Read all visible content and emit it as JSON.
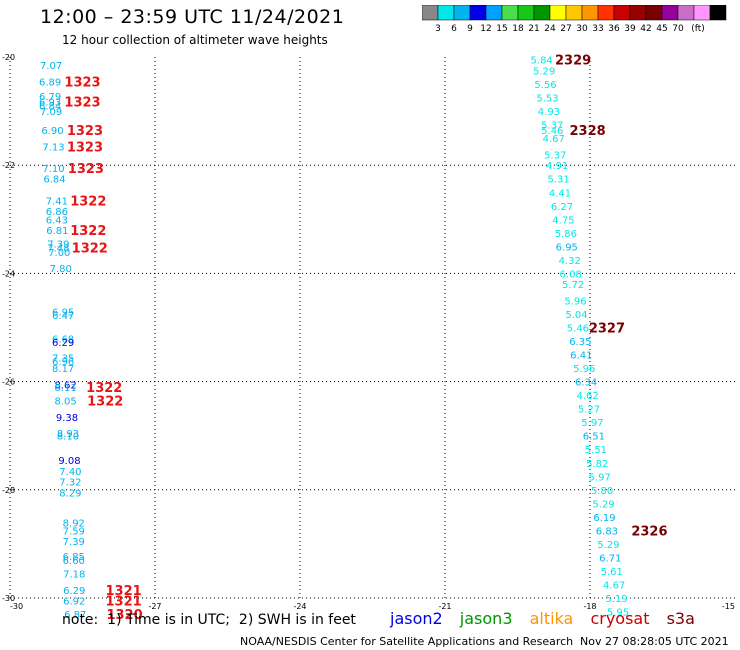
{
  "header": {
    "title": "12:00 – 23:59 UTC 11/24/2021",
    "subtitle": "12 hour collection of altimeter wave heights"
  },
  "colorbar": {
    "colors": [
      "#888888",
      "#00e8e8",
      "#00b4f0",
      "#0000e6",
      "#00a0ff",
      "#4ade4a",
      "#18c818",
      "#009600",
      "#ffff00",
      "#ffc800",
      "#ff9600",
      "#ff3200",
      "#c80000",
      "#960000",
      "#780000",
      "#96009b",
      "#c86ec8",
      "#ff96ff",
      "#000000"
    ],
    "labels": [
      "3",
      "6",
      "9",
      "12",
      "15",
      "18",
      "21",
      "24",
      "27",
      "30",
      "33",
      "36",
      "39",
      "42",
      "45",
      "70",
      "(ft)"
    ]
  },
  "footer": {
    "note": "note:  1) Time is in UTC;  2) SWH is in feet",
    "credit": "NOAA/NESDIS Center for Satellite Applications and Research",
    "timestamp": "Nov 27 08:28:05 UTC 2021"
  },
  "legend": [
    {
      "name": "jason2",
      "color": "#0000e6"
    },
    {
      "name": "jason3",
      "color": "#009600"
    },
    {
      "name": "altika",
      "color": "#ff9600"
    },
    {
      "name": "cryosat",
      "color": "#c80000"
    },
    {
      "name": "s3a",
      "color": "#780000"
    }
  ],
  "chart_data": {
    "type": "scatter",
    "title": "12 hour collection of altimeter wave heights",
    "xlim": [
      -30,
      -15
    ],
    "ylim": [
      -30,
      -20
    ],
    "x_ticks": [
      "-30",
      "-27",
      "-24",
      "-21",
      "-18",
      "-15"
    ],
    "y_ticks": [
      "-20",
      "-22",
      "-24",
      "-26",
      "-28",
      "-30"
    ],
    "grid": true,
    "height_points": [
      {
        "x": -29.15,
        "y": -20.15,
        "value": "7.07",
        "color": "#00b4f0"
      },
      {
        "x": -29.17,
        "y": -20.45,
        "value": "6.89",
        "color": "#00b4f0"
      },
      {
        "x": -29.17,
        "y": -20.72,
        "value": "6.79",
        "color": "#00b4f0"
      },
      {
        "x": -29.17,
        "y": -20.82,
        "value": "6.93",
        "color": "#00b4f0"
      },
      {
        "x": -29.17,
        "y": -20.9,
        "value": "6.84",
        "color": "#00b4f0"
      },
      {
        "x": -29.15,
        "y": -21.0,
        "value": "7.09",
        "color": "#00b4f0"
      },
      {
        "x": -29.12,
        "y": -21.35,
        "value": "6.90",
        "color": "#00b4f0"
      },
      {
        "x": -29.1,
        "y": -21.65,
        "value": "7.13",
        "color": "#00b4f0"
      },
      {
        "x": -29.1,
        "y": -22.05,
        "value": "7.10",
        "color": "#00b4f0"
      },
      {
        "x": -29.08,
        "y": -22.25,
        "value": "6.84",
        "color": "#00b4f0"
      },
      {
        "x": -29.03,
        "y": -22.65,
        "value": "7.41",
        "color": "#00b4f0"
      },
      {
        "x": -29.03,
        "y": -22.85,
        "value": "6.86",
        "color": "#00b4f0"
      },
      {
        "x": -29.03,
        "y": -23.0,
        "value": "6.43",
        "color": "#00b4f0"
      },
      {
        "x": -29.02,
        "y": -23.2,
        "value": "6.81",
        "color": "#00b4f0"
      },
      {
        "x": -29.0,
        "y": -23.45,
        "value": "7.39",
        "color": "#00b4f0"
      },
      {
        "x": -29.0,
        "y": -23.52,
        "value": "7.48",
        "color": "#00b4f0"
      },
      {
        "x": -28.98,
        "y": -23.6,
        "value": "7.00",
        "color": "#00b4f0"
      },
      {
        "x": -28.95,
        "y": -23.9,
        "value": "7.80",
        "color": "#00b4f0"
      },
      {
        "x": -28.9,
        "y": -24.7,
        "value": "6.95",
        "color": "#00b4f0"
      },
      {
        "x": -28.9,
        "y": -24.77,
        "value": "6.47",
        "color": "#00b4f0"
      },
      {
        "x": -28.9,
        "y": -25.2,
        "value": "6.68",
        "color": "#00b4f0"
      },
      {
        "x": -28.9,
        "y": -25.27,
        "value": "6.29",
        "color": "#0000e6"
      },
      {
        "x": -28.9,
        "y": -25.55,
        "value": "7.35",
        "color": "#00b4f0"
      },
      {
        "x": -28.9,
        "y": -25.62,
        "value": "6.96",
        "color": "#00b4f0"
      },
      {
        "x": -28.9,
        "y": -25.75,
        "value": "8.17",
        "color": "#00b4f0"
      },
      {
        "x": -28.85,
        "y": -26.05,
        "value": "8.62",
        "color": "#0000e6"
      },
      {
        "x": -28.85,
        "y": -26.1,
        "value": "8.11",
        "color": "#00b4f0"
      },
      {
        "x": -28.85,
        "y": -26.35,
        "value": "8.05",
        "color": "#00b4f0"
      },
      {
        "x": -28.82,
        "y": -26.65,
        "value": "9.38",
        "color": "#0000e6"
      },
      {
        "x": -28.8,
        "y": -26.95,
        "value": "8.93",
        "color": "#00b4f0"
      },
      {
        "x": -28.8,
        "y": -27.0,
        "value": "8.10",
        "color": "#00b4f0"
      },
      {
        "x": -28.77,
        "y": -27.45,
        "value": "9.08",
        "color": "#0000e6"
      },
      {
        "x": -28.75,
        "y": -27.65,
        "value": "7.40",
        "color": "#00b4f0"
      },
      {
        "x": -28.75,
        "y": -27.85,
        "value": "7.32",
        "color": "#00b4f0"
      },
      {
        "x": -28.75,
        "y": -28.05,
        "value": "8.29",
        "color": "#00b4f0"
      },
      {
        "x": -28.68,
        "y": -28.6,
        "value": "8.92",
        "color": "#00b4f0"
      },
      {
        "x": -28.68,
        "y": -28.75,
        "value": "7.59",
        "color": "#00b4f0"
      },
      {
        "x": -28.68,
        "y": -28.95,
        "value": "7.39",
        "color": "#00b4f0"
      },
      {
        "x": -28.68,
        "y": -29.22,
        "value": "6.85",
        "color": "#00b4f0"
      },
      {
        "x": -28.68,
        "y": -29.3,
        "value": "6.60",
        "color": "#00b4f0"
      },
      {
        "x": -28.67,
        "y": -29.55,
        "value": "7.18",
        "color": "#00b4f0"
      },
      {
        "x": -28.67,
        "y": -29.85,
        "value": "6.29",
        "color": "#00b4f0"
      },
      {
        "x": -28.67,
        "y": -30.05,
        "value": "6.92",
        "color": "#00b4f0"
      },
      {
        "x": -28.65,
        "y": -30.3,
        "value": "6.87",
        "color": "#00b4f0"
      },
      {
        "x": -19.0,
        "y": -20.05,
        "value": "5.84",
        "color": "#00e8e8"
      },
      {
        "x": -18.95,
        "y": -20.25,
        "value": "5.29",
        "color": "#00e8e8"
      },
      {
        "x": -18.92,
        "y": -20.5,
        "value": "5.56",
        "color": "#00e8e8"
      },
      {
        "x": -18.88,
        "y": -20.75,
        "value": "5.53",
        "color": "#00e8e8"
      },
      {
        "x": -18.85,
        "y": -21.0,
        "value": "4.93",
        "color": "#00e8e8"
      },
      {
        "x": -18.78,
        "y": -21.25,
        "value": "5.37",
        "color": "#00e8e8"
      },
      {
        "x": -18.78,
        "y": -21.35,
        "value": "5.46",
        "color": "#00e8e8"
      },
      {
        "x": -18.75,
        "y": -21.5,
        "value": "4.67",
        "color": "#00e8e8"
      },
      {
        "x": -18.72,
        "y": -21.8,
        "value": "5.37",
        "color": "#00e8e8"
      },
      {
        "x": -18.68,
        "y": -22.0,
        "value": "4.91",
        "color": "#00e8e8"
      },
      {
        "x": -18.65,
        "y": -22.25,
        "value": "5.31",
        "color": "#00e8e8"
      },
      {
        "x": -18.62,
        "y": -22.5,
        "value": "4.41",
        "color": "#00e8e8"
      },
      {
        "x": -18.58,
        "y": -22.75,
        "value": "6.27",
        "color": "#00e8e8"
      },
      {
        "x": -18.55,
        "y": -23.0,
        "value": "4.75",
        "color": "#00e8e8"
      },
      {
        "x": -18.5,
        "y": -23.25,
        "value": "5.86",
        "color": "#00e8e8"
      },
      {
        "x": -18.48,
        "y": -23.5,
        "value": "6.95",
        "color": "#00b4f0"
      },
      {
        "x": -18.42,
        "y": -23.75,
        "value": "4.32",
        "color": "#00e8e8"
      },
      {
        "x": -18.4,
        "y": -24.0,
        "value": "6.08",
        "color": "#00e8e8"
      },
      {
        "x": -18.35,
        "y": -24.2,
        "value": "5.72",
        "color": "#00e8e8"
      },
      {
        "x": -18.3,
        "y": -24.5,
        "value": "5.96",
        "color": "#00e8e8"
      },
      {
        "x": -18.28,
        "y": -24.75,
        "value": "5.04",
        "color": "#00e8e8"
      },
      {
        "x": -18.25,
        "y": -25.0,
        "value": "5.46",
        "color": "#00e8e8"
      },
      {
        "x": -18.2,
        "y": -25.25,
        "value": "6.35",
        "color": "#00b4f0"
      },
      {
        "x": -18.18,
        "y": -25.5,
        "value": "6.41",
        "color": "#00b4f0"
      },
      {
        "x": -18.12,
        "y": -25.75,
        "value": "5.96",
        "color": "#00e8e8"
      },
      {
        "x": -18.08,
        "y": -26.0,
        "value": "6.34",
        "color": "#00b4f0"
      },
      {
        "x": -18.05,
        "y": -26.25,
        "value": "4.62",
        "color": "#00e8e8"
      },
      {
        "x": -18.02,
        "y": -26.5,
        "value": "5.27",
        "color": "#00e8e8"
      },
      {
        "x": -17.95,
        "y": -26.75,
        "value": "5.97",
        "color": "#00e8e8"
      },
      {
        "x": -17.92,
        "y": -27.0,
        "value": "6.51",
        "color": "#00b4f0"
      },
      {
        "x": -17.88,
        "y": -27.25,
        "value": "5.51",
        "color": "#00e8e8"
      },
      {
        "x": -17.85,
        "y": -27.5,
        "value": "5.82",
        "color": "#00e8e8"
      },
      {
        "x": -17.8,
        "y": -27.75,
        "value": "5.97",
        "color": "#00e8e8"
      },
      {
        "x": -17.75,
        "y": -28.0,
        "value": "5.80",
        "color": "#00e8e8"
      },
      {
        "x": -17.72,
        "y": -28.25,
        "value": "5.29",
        "color": "#00e8e8"
      },
      {
        "x": -17.7,
        "y": -28.5,
        "value": "6.19",
        "color": "#00b4f0"
      },
      {
        "x": -17.65,
        "y": -28.75,
        "value": "6.83",
        "color": "#00b4f0"
      },
      {
        "x": -17.62,
        "y": -29.0,
        "value": "5.29",
        "color": "#00e8e8"
      },
      {
        "x": -17.58,
        "y": -29.25,
        "value": "6.71",
        "color": "#00b4f0"
      },
      {
        "x": -17.55,
        "y": -29.5,
        "value": "5.61",
        "color": "#00e8e8"
      },
      {
        "x": -17.5,
        "y": -29.75,
        "value": "4.67",
        "color": "#00e8e8"
      },
      {
        "x": -17.45,
        "y": -30.0,
        "value": "5.19",
        "color": "#00e8e8"
      },
      {
        "x": -17.42,
        "y": -30.25,
        "value": "5.95",
        "color": "#00e8e8"
      }
    ],
    "time_labels": [
      {
        "x": -28.5,
        "y": -20.45,
        "text": "1323",
        "color": "#e61414"
      },
      {
        "x": -28.5,
        "y": -20.82,
        "text": "1323",
        "color": "#e61414"
      },
      {
        "x": -28.45,
        "y": -21.35,
        "text": "1323",
        "color": "#e61414"
      },
      {
        "x": -28.45,
        "y": -21.65,
        "text": "1323",
        "color": "#e61414"
      },
      {
        "x": -28.43,
        "y": -22.05,
        "text": "1323",
        "color": "#e61414"
      },
      {
        "x": -28.38,
        "y": -22.65,
        "text": "1322",
        "color": "#e61414"
      },
      {
        "x": -28.38,
        "y": -23.2,
        "text": "1322",
        "color": "#e61414"
      },
      {
        "x": -28.35,
        "y": -23.52,
        "text": "1322",
        "color": "#e61414"
      },
      {
        "x": -28.05,
        "y": -26.1,
        "text": "1322",
        "color": "#e61414"
      },
      {
        "x": -28.03,
        "y": -26.35,
        "text": "1322",
        "color": "#e61414"
      },
      {
        "x": -27.65,
        "y": -29.85,
        "text": "1321",
        "color": "#e61414"
      },
      {
        "x": -27.65,
        "y": -30.05,
        "text": "1321",
        "color": "#e61414"
      },
      {
        "x": -27.63,
        "y": -30.3,
        "text": "1320",
        "color": "#e61414"
      },
      {
        "x": -18.35,
        "y": -20.05,
        "text": "2329",
        "color": "#780000"
      },
      {
        "x": -18.05,
        "y": -21.35,
        "text": "2328",
        "color": "#780000"
      },
      {
        "x": -17.65,
        "y": -25.0,
        "text": "2327",
        "color": "#780000"
      },
      {
        "x": -16.77,
        "y": -28.75,
        "text": "2326",
        "color": "#780000"
      }
    ]
  }
}
